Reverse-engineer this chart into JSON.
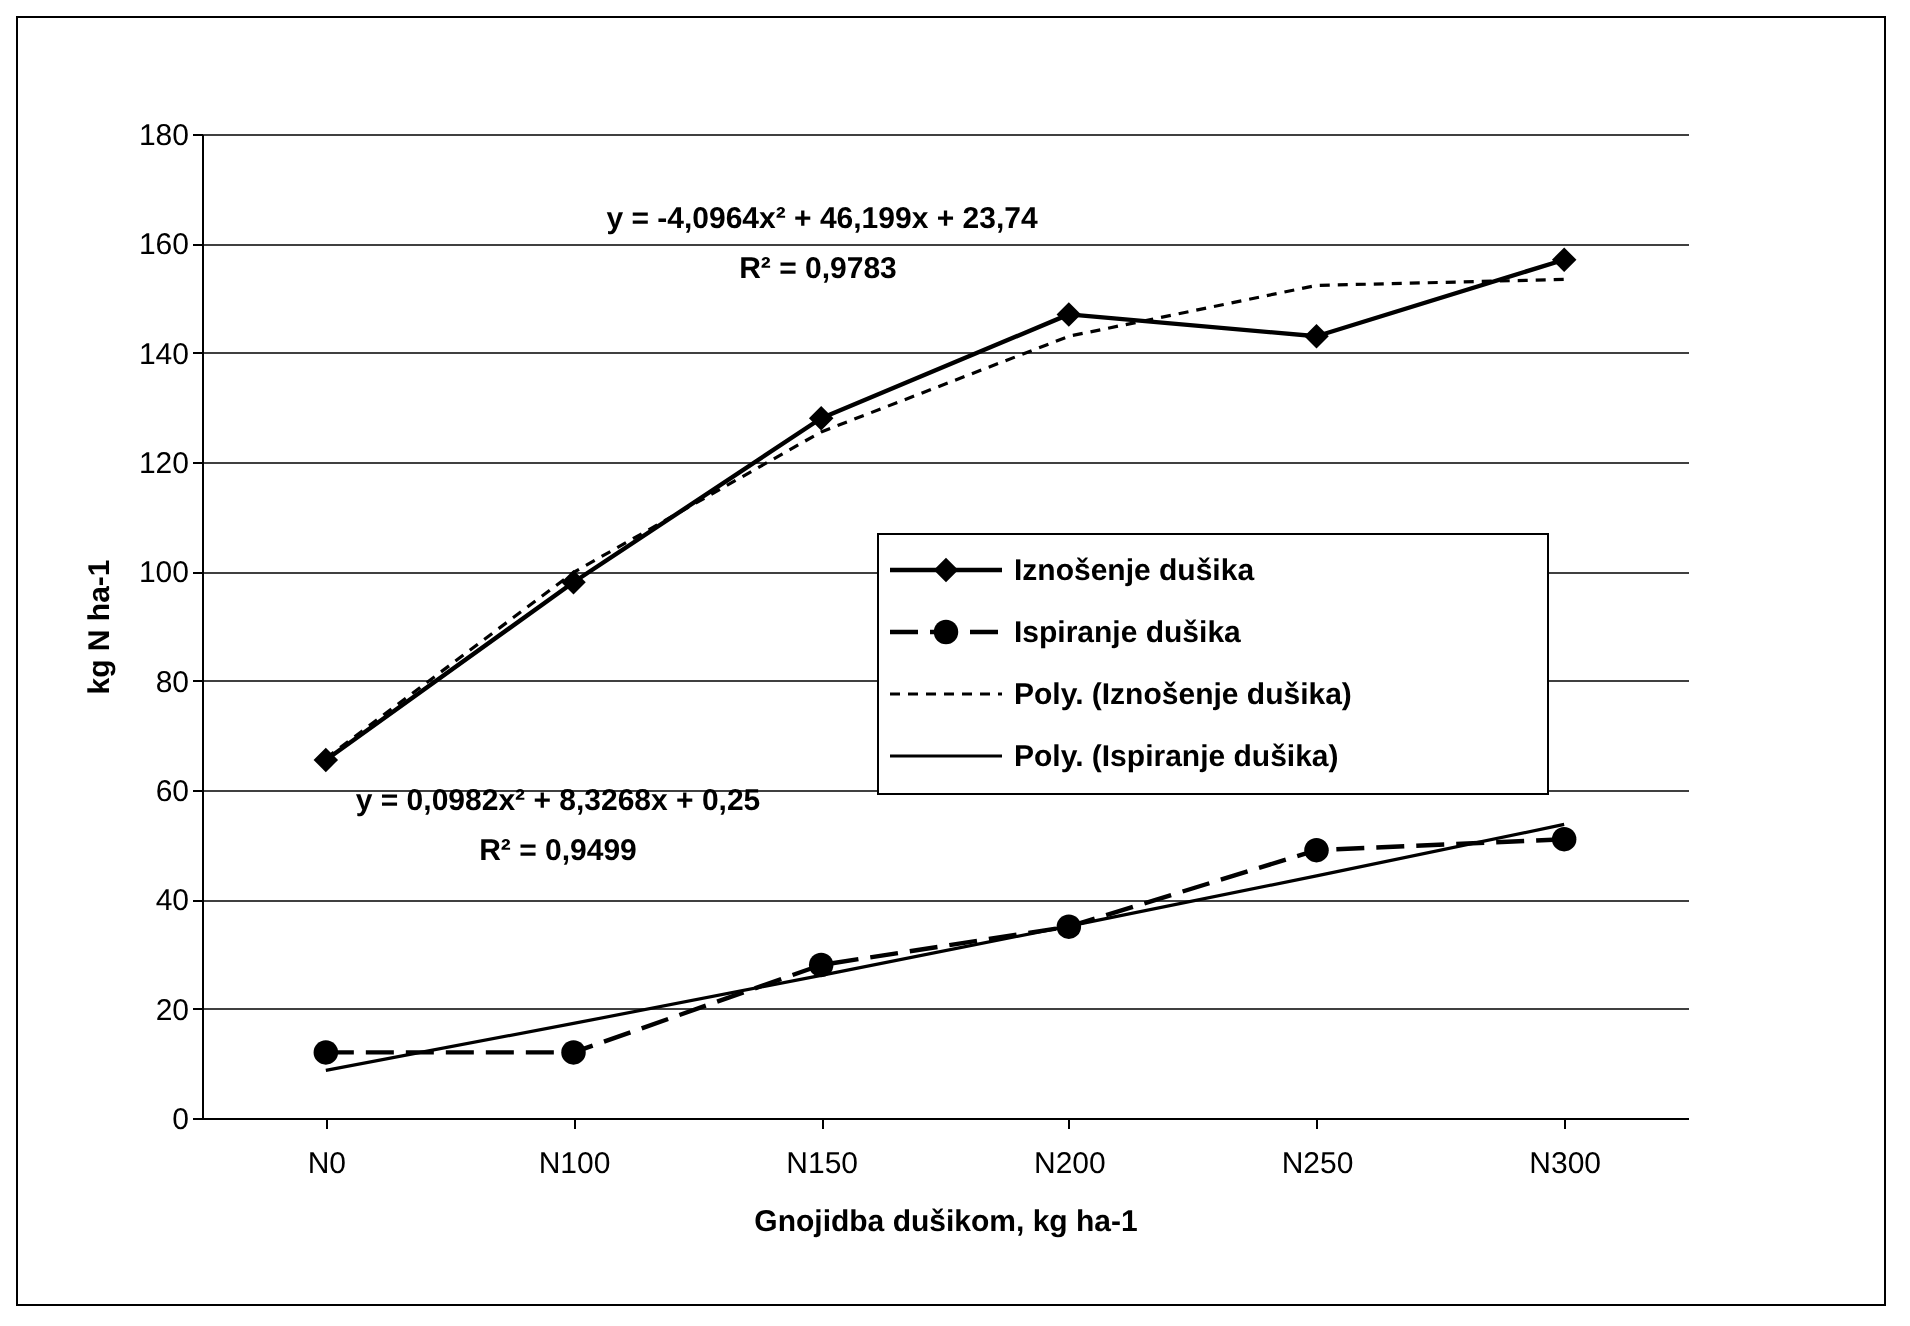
{
  "chart_data": {
    "type": "line",
    "xlabel": "Gnojidba dušikom, kg ha-1",
    "ylabel": "kg N ha-1",
    "categories": [
      "N0",
      "N100",
      "N150",
      "N200",
      "N250",
      "N300"
    ],
    "series": [
      {
        "name": "Iznošenje dušika",
        "color": "#000000",
        "marker": "diamond",
        "line_style": "solid",
        "values": [
          65.5,
          98,
          128,
          147,
          143,
          157
        ]
      },
      {
        "name": "Ispiranje dušika",
        "color": "#000000",
        "marker": "circle",
        "line_style": "dashed",
        "values": [
          12,
          12,
          28,
          35,
          49,
          51
        ]
      },
      {
        "name": "Poly. (Iznošenje dušika)",
        "color": "#000000",
        "marker": "none",
        "line_style": "dotted",
        "values": [
          65.8,
          99.8,
          125.5,
          143,
          152.3,
          153.4
        ]
      },
      {
        "name": "Poly. (Ispiranje dušika)",
        "color": "#000000",
        "marker": "none",
        "line_style": "solid",
        "values": [
          8.7,
          17.3,
          26.1,
          35.1,
          44.3,
          53.7
        ]
      }
    ],
    "annotations": [
      "y = -4,0964x² + 46,199x + 23,74",
      "R² = 0,9783",
      "y = 0,0982x² + 8,3268x + 0,25",
      "R² = 0,9499"
    ],
    "ylim": [
      0,
      180
    ],
    "yticks": [
      0,
      20,
      40,
      60,
      80,
      100,
      120,
      140,
      160,
      180
    ],
    "grid": "y",
    "legend": "right"
  }
}
